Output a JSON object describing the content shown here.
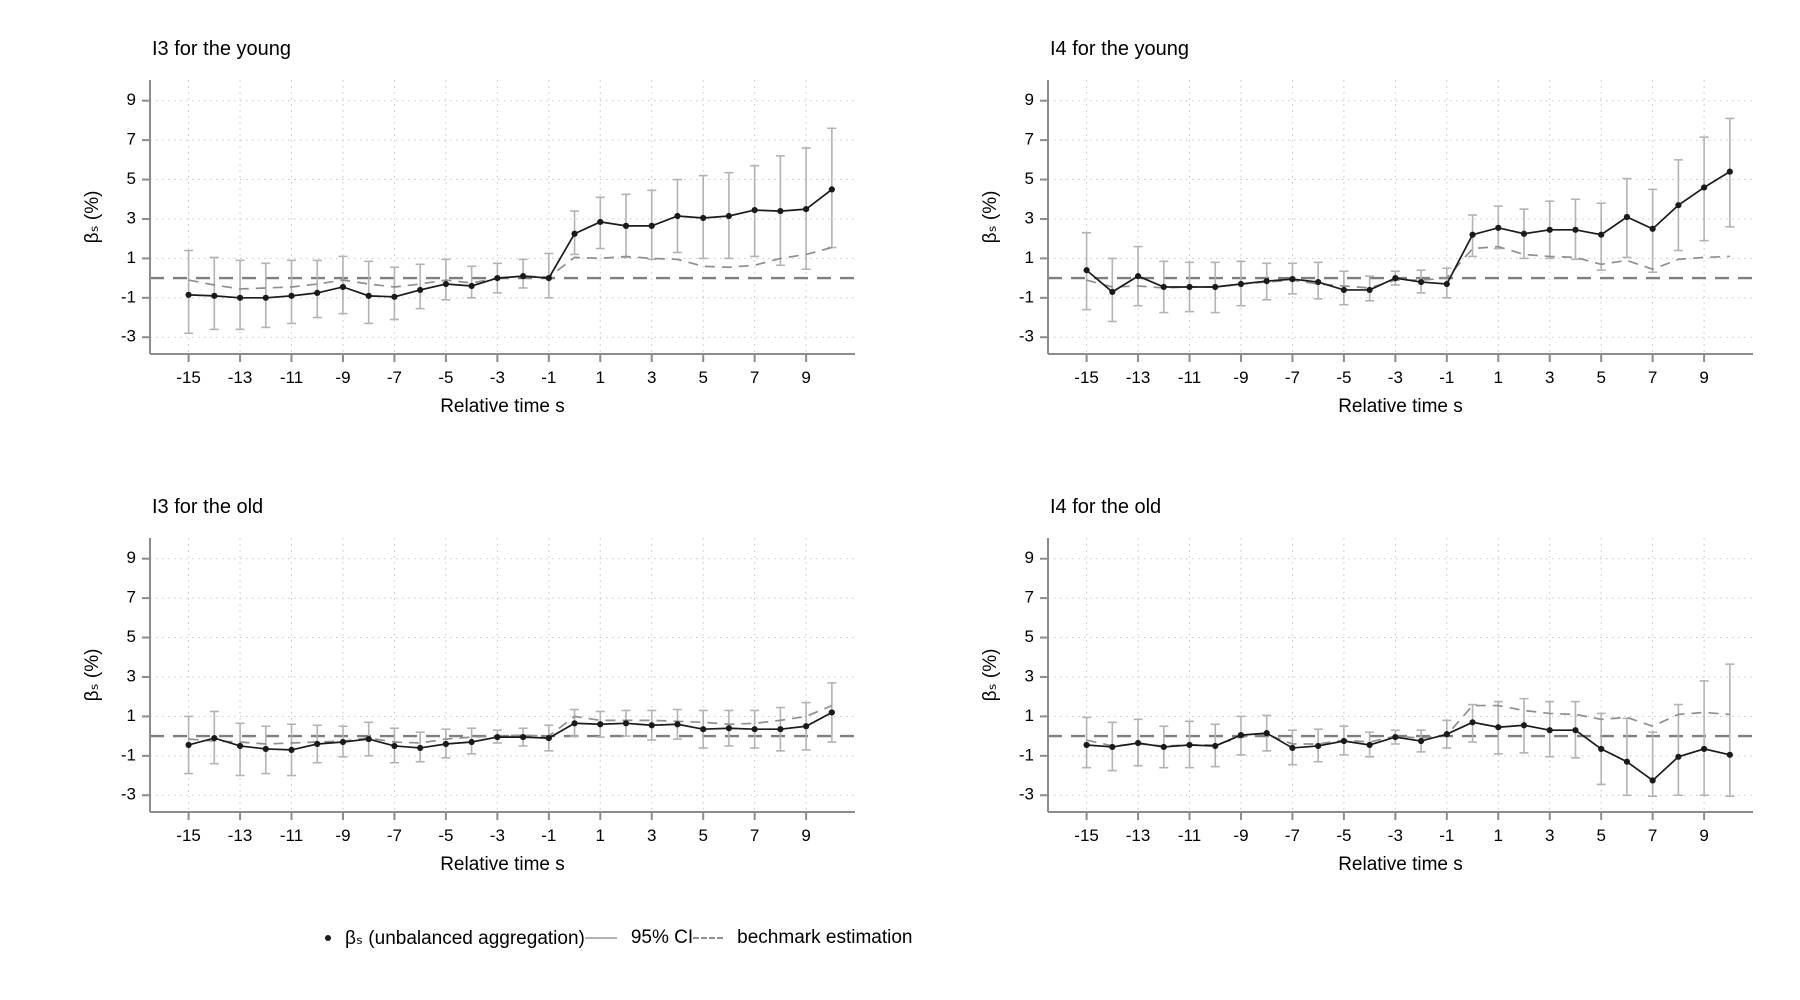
{
  "legend": {
    "beta_label": "βₛ (unbalanced aggregation)",
    "ci_label": "95% CI",
    "benchmark_label": "bechmark estimation"
  },
  "colors": {
    "line": "#1a1a1a",
    "ci": "#b3b3b3",
    "benchmark": "#8f8f8f",
    "zero_line": "#7f7f7f",
    "grid": "#c9c9c9",
    "axis": "#8c8c8c",
    "text": "#000000",
    "background": "#ffffff"
  },
  "chart_data": [
    {
      "type": "line",
      "title": "I3 for the young",
      "xlabel": "Relative time s",
      "ylabel": "βₛ (%)",
      "x": [
        -15,
        -14,
        -13,
        -12,
        -11,
        -10,
        -9,
        -8,
        -7,
        -6,
        -5,
        -4,
        -3,
        -2,
        -1,
        0,
        1,
        2,
        3,
        4,
        5,
        6,
        7,
        8,
        9,
        10
      ],
      "xticks": [
        -15,
        -13,
        -11,
        -9,
        -7,
        -5,
        -3,
        -1,
        1,
        3,
        5,
        7,
        9
      ],
      "yticks": [
        -3,
        -1,
        1,
        3,
        5,
        7,
        9
      ],
      "xlim": [
        -16.5,
        10.9
      ],
      "ylim": [
        -3.85,
        10.05
      ],
      "zero_line": true,
      "grid": "dotted",
      "series": [
        {
          "name": "βₛ (unbalanced aggregation)",
          "values": [
            -0.85,
            -0.9,
            -1.0,
            -1.0,
            -0.9,
            -0.75,
            -0.45,
            -0.9,
            -0.95,
            -0.6,
            -0.3,
            -0.4,
            0.0,
            0.1,
            0.0,
            2.25,
            2.85,
            2.65,
            2.65,
            3.15,
            3.05,
            3.15,
            3.45,
            3.4,
            3.5,
            4.5
          ]
        },
        {
          "name": "95% CI lower",
          "values": [
            -2.8,
            -2.6,
            -2.6,
            -2.5,
            -2.3,
            -2.0,
            -1.8,
            -2.3,
            -2.1,
            -1.55,
            -1.1,
            -1.0,
            -0.75,
            -0.5,
            -1.0,
            1.2,
            1.5,
            1.05,
            0.95,
            1.3,
            1.0,
            1.0,
            1.1,
            0.65,
            0.45,
            1.55
          ]
        },
        {
          "name": "95% CI upper",
          "values": [
            1.4,
            1.05,
            0.9,
            0.75,
            0.9,
            0.9,
            1.1,
            0.85,
            0.55,
            0.7,
            0.95,
            0.6,
            0.75,
            0.95,
            1.25,
            3.4,
            4.1,
            4.25,
            4.45,
            5.0,
            5.2,
            5.35,
            5.7,
            6.2,
            6.6,
            7.6
          ]
        },
        {
          "name": "bechmark estimation",
          "values": [
            -0.1,
            -0.35,
            -0.55,
            -0.5,
            -0.45,
            -0.3,
            -0.1,
            -0.3,
            -0.45,
            -0.3,
            -0.1,
            -0.25,
            0.0,
            0.1,
            0.05,
            1.05,
            1.0,
            1.1,
            1.0,
            0.95,
            0.6,
            0.55,
            0.65,
            1.0,
            1.2,
            1.55
          ]
        }
      ]
    },
    {
      "type": "line",
      "title": "I4 for the young",
      "xlabel": "Relative time s",
      "ylabel": "βₛ (%)",
      "x": [
        -15,
        -14,
        -13,
        -12,
        -11,
        -10,
        -9,
        -8,
        -7,
        -6,
        -5,
        -4,
        -3,
        -2,
        -1,
        0,
        1,
        2,
        3,
        4,
        5,
        6,
        7,
        8,
        9,
        10
      ],
      "xticks": [
        -15,
        -13,
        -11,
        -9,
        -7,
        -5,
        -3,
        -1,
        1,
        3,
        5,
        7,
        9
      ],
      "yticks": [
        -3,
        -1,
        1,
        3,
        5,
        7,
        9
      ],
      "xlim": [
        -16.5,
        10.9
      ],
      "ylim": [
        -3.85,
        10.05
      ],
      "zero_line": true,
      "grid": "dotted",
      "series": [
        {
          "name": "βₛ (unbalanced aggregation)",
          "values": [
            0.4,
            -0.7,
            0.1,
            -0.45,
            -0.45,
            -0.45,
            -0.3,
            -0.15,
            -0.05,
            -0.2,
            -0.6,
            -0.6,
            0.0,
            -0.2,
            -0.3,
            2.2,
            2.55,
            2.25,
            2.45,
            2.45,
            2.2,
            3.1,
            2.5,
            3.7,
            4.6,
            5.4
          ]
        },
        {
          "name": "95% CI lower",
          "values": [
            -1.6,
            -2.2,
            -1.4,
            -1.75,
            -1.7,
            -1.75,
            -1.4,
            -1.1,
            -0.8,
            -1.05,
            -1.35,
            -1.15,
            -0.35,
            -0.75,
            -1.0,
            1.1,
            1.5,
            1.0,
            1.0,
            0.95,
            0.4,
            1.05,
            0.3,
            1.4,
            1.9,
            2.6
          ]
        },
        {
          "name": "95% CI upper",
          "values": [
            2.3,
            1.0,
            1.6,
            0.85,
            0.8,
            0.8,
            0.85,
            0.75,
            0.75,
            0.8,
            0.35,
            0.1,
            0.35,
            0.4,
            0.5,
            3.2,
            3.65,
            3.5,
            3.9,
            4.0,
            3.8,
            5.05,
            4.5,
            6.0,
            7.15,
            8.1
          ]
        },
        {
          "name": "bechmark estimation",
          "values": [
            -0.1,
            -0.45,
            -0.4,
            -0.5,
            -0.45,
            -0.45,
            -0.3,
            -0.2,
            -0.1,
            -0.3,
            -0.4,
            -0.5,
            -0.1,
            -0.1,
            0.0,
            1.5,
            1.6,
            1.2,
            1.1,
            1.05,
            0.7,
            0.9,
            0.45,
            0.95,
            1.05,
            1.1
          ]
        }
      ]
    },
    {
      "type": "line",
      "title": "I3 for the old",
      "xlabel": "Relative time s",
      "ylabel": "βₛ (%)",
      "x": [
        -15,
        -14,
        -13,
        -12,
        -11,
        -10,
        -9,
        -8,
        -7,
        -6,
        -5,
        -4,
        -3,
        -2,
        -1,
        0,
        1,
        2,
        3,
        4,
        5,
        6,
        7,
        8,
        9,
        10
      ],
      "xticks": [
        -15,
        -13,
        -11,
        -9,
        -7,
        -5,
        -3,
        -1,
        1,
        3,
        5,
        7,
        9
      ],
      "yticks": [
        -3,
        -1,
        1,
        3,
        5,
        7,
        9
      ],
      "xlim": [
        -16.5,
        10.9
      ],
      "ylim": [
        -3.85,
        10.05
      ],
      "zero_line": true,
      "grid": "dotted",
      "series": [
        {
          "name": "βₛ (unbalanced aggregation)",
          "values": [
            -0.45,
            -0.1,
            -0.5,
            -0.65,
            -0.7,
            -0.4,
            -0.3,
            -0.15,
            -0.5,
            -0.6,
            -0.4,
            -0.3,
            -0.05,
            -0.05,
            -0.1,
            0.65,
            0.6,
            0.65,
            0.55,
            0.6,
            0.35,
            0.4,
            0.35,
            0.35,
            0.5,
            1.2
          ]
        },
        {
          "name": "95% CI lower",
          "values": [
            -1.9,
            -1.4,
            -2.0,
            -1.9,
            -2.0,
            -1.35,
            -1.05,
            -1.0,
            -1.35,
            -1.3,
            -1.1,
            -0.9,
            -0.35,
            -0.5,
            -0.75,
            0.0,
            -0.05,
            0.0,
            -0.2,
            -0.15,
            -0.6,
            -0.5,
            -0.6,
            -0.75,
            -0.7,
            -0.3
          ]
        },
        {
          "name": "95% CI upper",
          "values": [
            1.0,
            1.25,
            0.65,
            0.5,
            0.6,
            0.55,
            0.5,
            0.7,
            0.4,
            0.2,
            0.35,
            0.4,
            0.3,
            0.4,
            0.55,
            1.35,
            1.25,
            1.3,
            1.3,
            1.35,
            1.3,
            1.3,
            1.3,
            1.45,
            1.7,
            2.7
          ]
        },
        {
          "name": "bechmark estimation",
          "values": [
            -0.15,
            -0.25,
            -0.3,
            -0.4,
            -0.35,
            -0.3,
            -0.25,
            -0.1,
            -0.3,
            -0.35,
            -0.15,
            -0.05,
            0.0,
            0.05,
            0.0,
            1.0,
            0.8,
            0.8,
            0.8,
            0.75,
            0.7,
            0.6,
            0.65,
            0.8,
            1.0,
            1.55
          ]
        }
      ]
    },
    {
      "type": "line",
      "title": "I4 for the old",
      "xlabel": "Relative time s",
      "ylabel": "βₛ (%)",
      "x": [
        -15,
        -14,
        -13,
        -12,
        -11,
        -10,
        -9,
        -8,
        -7,
        -6,
        -5,
        -4,
        -3,
        -2,
        -1,
        0,
        1,
        2,
        3,
        4,
        5,
        6,
        7,
        8,
        9,
        10
      ],
      "xticks": [
        -15,
        -13,
        -11,
        -9,
        -7,
        -5,
        -3,
        -1,
        1,
        3,
        5,
        7,
        9
      ],
      "yticks": [
        -3,
        -1,
        1,
        3,
        5,
        7,
        9
      ],
      "xlim": [
        -16.5,
        10.9
      ],
      "ylim": [
        -3.85,
        10.05
      ],
      "zero_line": true,
      "grid": "dotted",
      "series": [
        {
          "name": "βₛ (unbalanced aggregation)",
          "values": [
            -0.45,
            -0.55,
            -0.35,
            -0.55,
            -0.45,
            -0.5,
            0.05,
            0.15,
            -0.6,
            -0.5,
            -0.25,
            -0.45,
            -0.05,
            -0.25,
            0.1,
            0.7,
            0.45,
            0.55,
            0.3,
            0.3,
            -0.65,
            -1.3,
            -2.25,
            -1.05,
            -0.65,
            -0.95
          ]
        },
        {
          "name": "95% CI lower",
          "values": [
            -1.6,
            -1.75,
            -1.5,
            -1.6,
            -1.6,
            -1.55,
            -0.95,
            -0.75,
            -1.45,
            -1.3,
            -0.95,
            -1.05,
            -0.4,
            -0.8,
            -0.6,
            -0.3,
            -0.9,
            -0.85,
            -1.05,
            -1.1,
            -2.45,
            -3.0,
            -3.05,
            -3.0,
            -3.0,
            -3.05
          ]
        },
        {
          "name": "95% CI upper",
          "values": [
            0.95,
            0.7,
            0.85,
            0.5,
            0.75,
            0.6,
            1.0,
            1.05,
            0.3,
            0.35,
            0.5,
            0.2,
            0.3,
            0.3,
            0.8,
            1.6,
            1.75,
            1.9,
            1.75,
            1.75,
            1.15,
            0.9,
            0.2,
            1.6,
            2.8,
            3.65
          ]
        },
        {
          "name": "bechmark estimation",
          "values": [
            -0.2,
            -0.5,
            -0.4,
            -0.5,
            -0.45,
            -0.45,
            -0.05,
            0.1,
            -0.4,
            -0.4,
            -0.2,
            -0.3,
            0.0,
            -0.1,
            0.05,
            1.55,
            1.55,
            1.3,
            1.15,
            1.1,
            0.85,
            0.95,
            0.5,
            1.1,
            1.2,
            1.1
          ]
        }
      ]
    }
  ]
}
